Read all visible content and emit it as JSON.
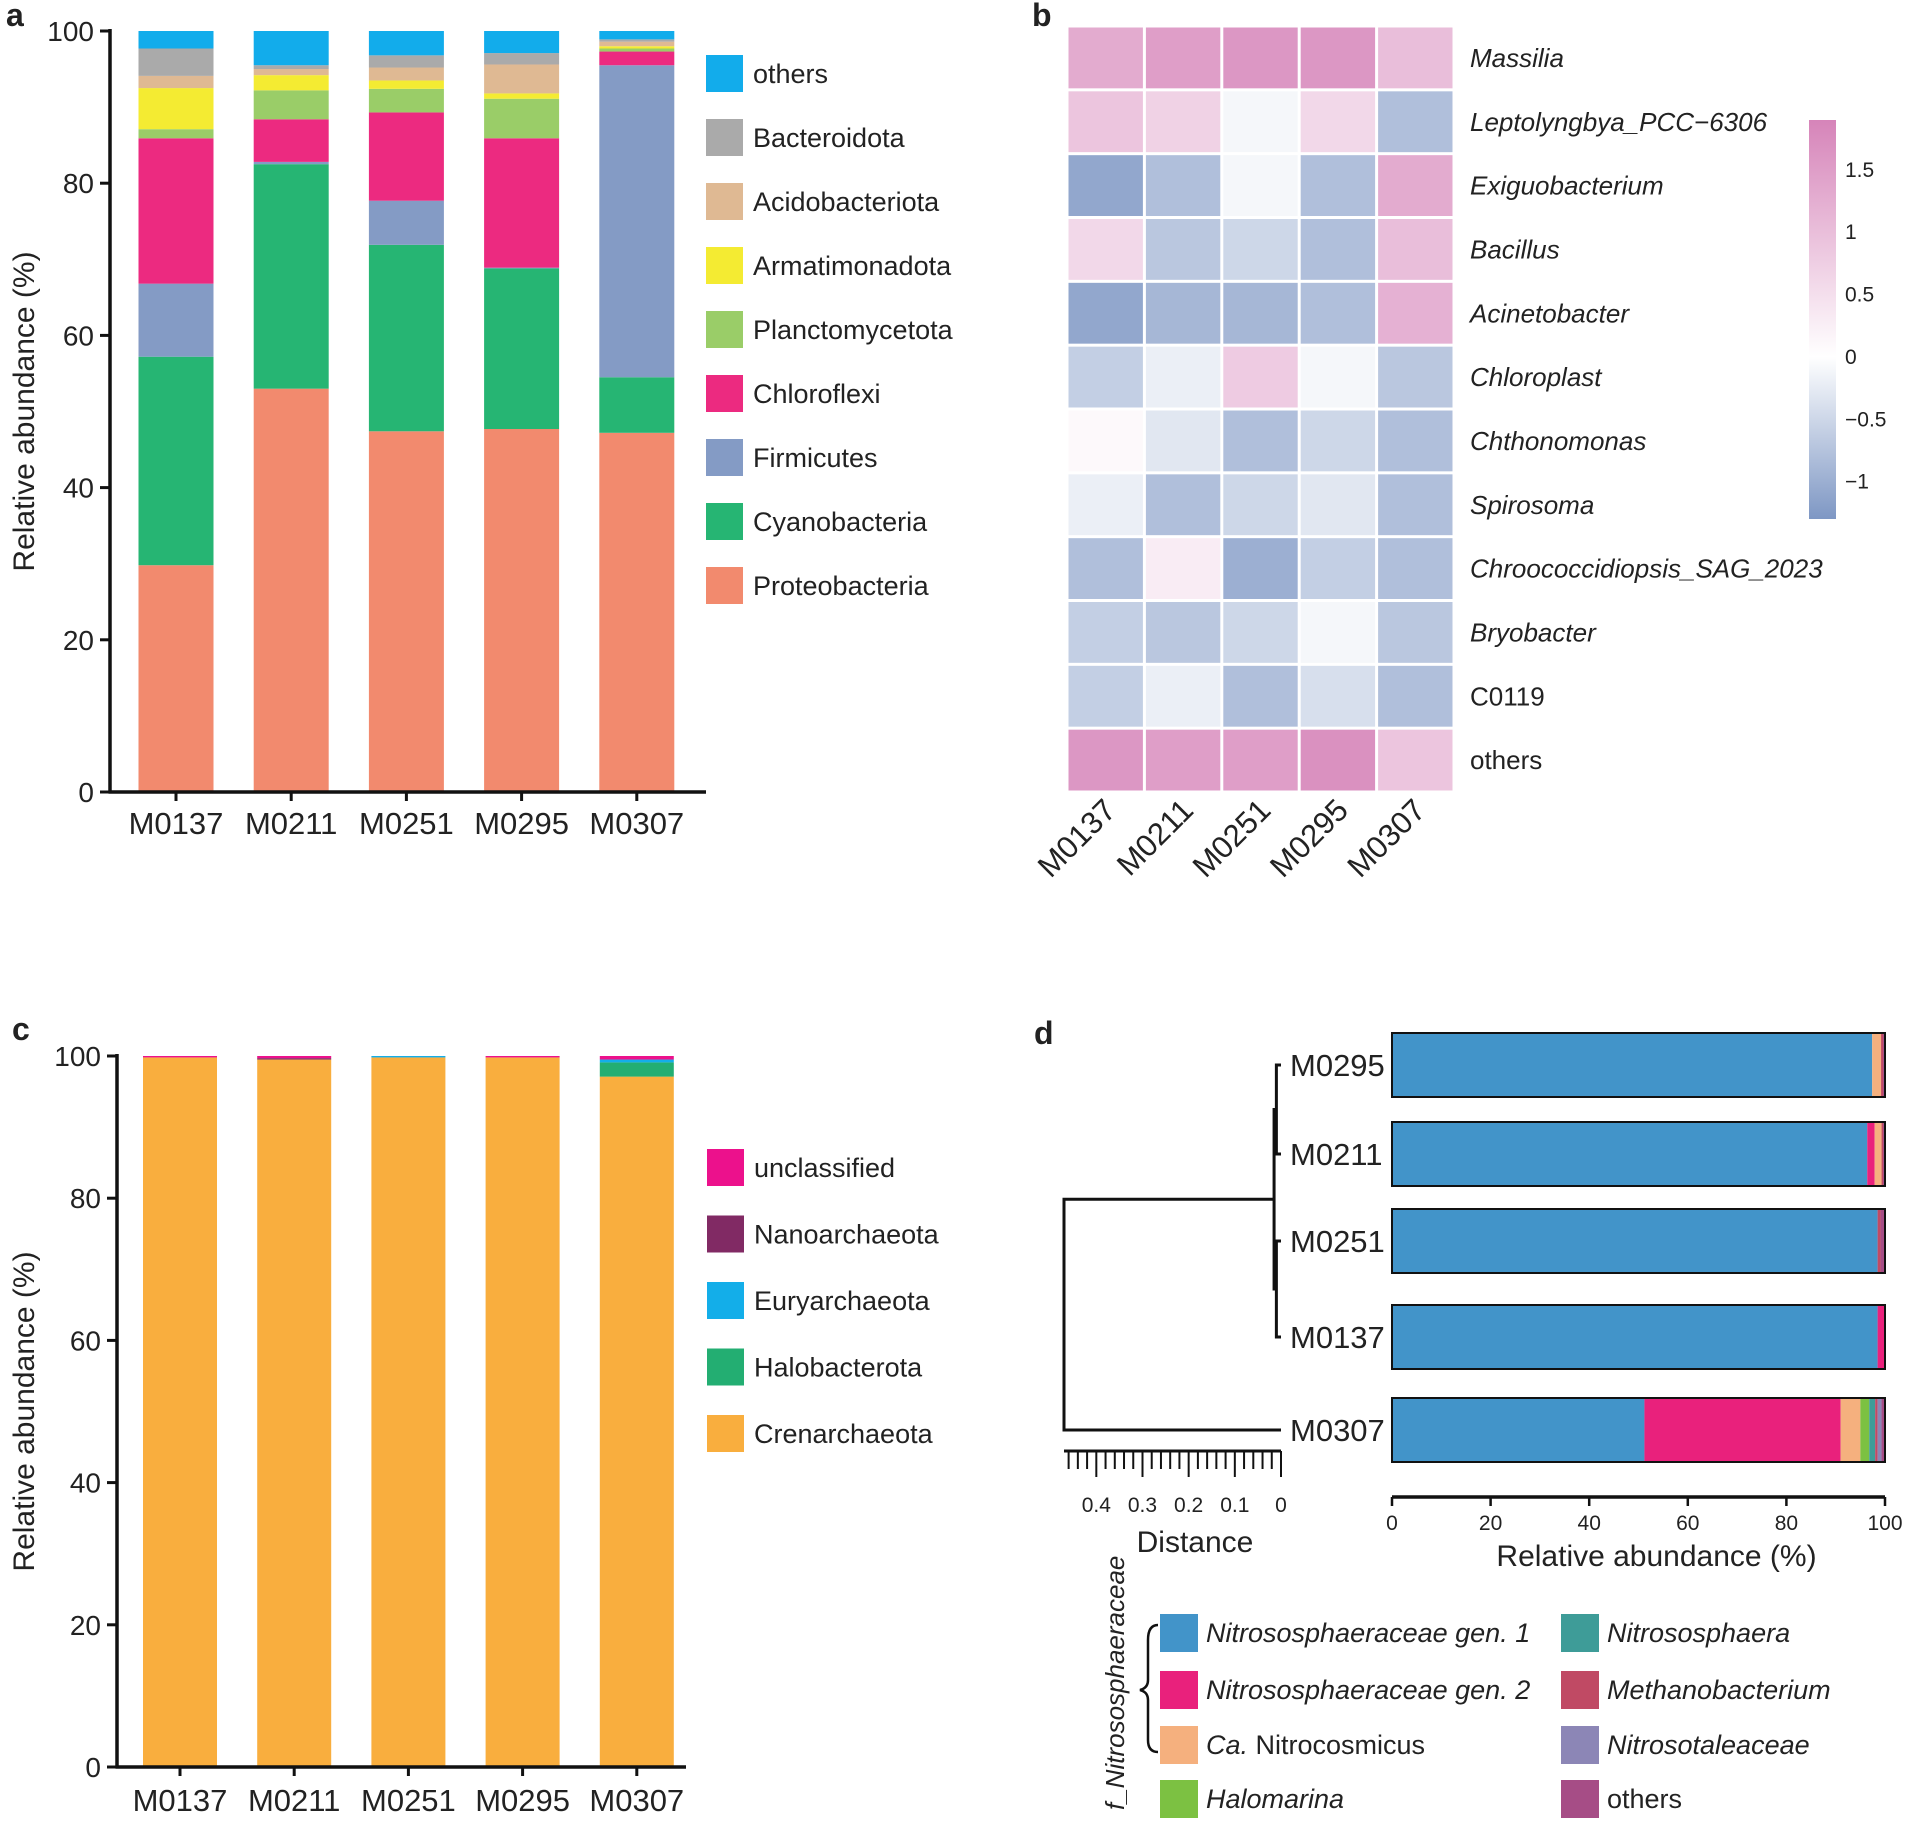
{
  "panels": {
    "a": {
      "label": "a",
      "chart_data": {
        "type": "bar",
        "stacked": true,
        "categories": [
          "M0137",
          "M0211",
          "M0251",
          "M0295",
          "M0307"
        ],
        "ylabel": "Relative abundance (%)",
        "ylim": [
          0,
          100
        ],
        "yticks": [
          0,
          20,
          40,
          60,
          80,
          100
        ],
        "legend_position": "right",
        "series": [
          {
            "name": "Proteobacteria",
            "color": "#F28A6E",
            "values": [
              29.8,
              53.0,
              47.4,
              47.7,
              47.2
            ]
          },
          {
            "name": "Cyanobacteria",
            "color": "#26B573",
            "values": [
              27.4,
              29.5,
              24.5,
              21.1,
              7.3
            ]
          },
          {
            "name": "Firmicutes",
            "color": "#849BC5",
            "values": [
              9.6,
              0.3,
              5.8,
              0.1,
              41.0
            ]
          },
          {
            "name": "Chloroflexi",
            "color": "#EC2A80",
            "values": [
              19.1,
              5.6,
              11.6,
              17.0,
              1.8
            ]
          },
          {
            "name": "Planctomycetota",
            "color": "#9ACD68",
            "values": [
              1.2,
              3.8,
              3.1,
              5.2,
              0.4
            ]
          },
          {
            "name": "Armatimonadota",
            "color": "#F4EB32",
            "values": [
              5.4,
              2.0,
              1.1,
              0.7,
              0.3
            ]
          },
          {
            "name": "Acidobacteriota",
            "color": "#DFB993",
            "values": [
              1.6,
              0.8,
              1.7,
              3.8,
              0.6
            ]
          },
          {
            "name": "Bacteroidota",
            "color": "#AAAAAA",
            "values": [
              3.6,
              0.5,
              1.6,
              1.5,
              0.3
            ]
          },
          {
            "name": "others",
            "color": "#12ACEB",
            "values": [
              2.3,
              4.5,
              3.2,
              2.9,
              1.1
            ]
          }
        ]
      }
    },
    "b": {
      "label": "b",
      "chart_data": {
        "type": "heatmap",
        "columns": [
          "M0137",
          "M0211",
          "M0251",
          "M0295",
          "M0307"
        ],
        "rows": [
          "Massilia",
          "Leptolyngbya_PCC−6306",
          "Exiguobacterium",
          "Bacillus",
          "Acinetobacter",
          "Chloroplast",
          "Chthonomonas",
          "Spirosoma",
          "Chroococcidiopsis_SAG_2023",
          "Bryobacter",
          "C0119",
          "others"
        ],
        "row_italic": [
          true,
          true,
          true,
          true,
          true,
          true,
          true,
          true,
          true,
          true,
          false,
          false
        ],
        "values": [
          [
            1.3,
            1.5,
            1.6,
            1.6,
            1.0
          ],
          [
            0.9,
            0.7,
            -0.1,
            0.6,
            -0.8
          ],
          [
            -1.1,
            -0.8,
            -0.1,
            -0.8,
            1.3
          ],
          [
            0.6,
            -0.7,
            -0.5,
            -0.8,
            1.0
          ],
          [
            -1.1,
            -0.9,
            -0.9,
            -0.8,
            1.2
          ],
          [
            -0.6,
            -0.2,
            0.8,
            -0.1,
            -0.7
          ],
          [
            0.1,
            -0.3,
            -0.8,
            -0.5,
            -0.8
          ],
          [
            -0.2,
            -0.8,
            -0.5,
            -0.3,
            -0.8
          ],
          [
            -0.8,
            0.3,
            -1.0,
            -0.6,
            -0.8
          ],
          [
            -0.6,
            -0.7,
            -0.5,
            -0.1,
            -0.7
          ],
          [
            -0.6,
            -0.2,
            -0.8,
            -0.4,
            -0.8
          ],
          [
            1.6,
            1.5,
            1.5,
            1.7,
            0.9
          ]
        ],
        "colorbar": {
          "min": -1.3,
          "max": 1.9,
          "ticks": [
            1.5,
            1,
            0.5,
            0,
            -0.5,
            -1
          ],
          "tick_labels": [
            "1.5",
            "1",
            "0.5",
            "0",
            "−0.5",
            "−1"
          ],
          "low_color": "#7E97C4",
          "mid_color": "#FFFFFF",
          "high_color": "#D684B9"
        }
      }
    },
    "c": {
      "label": "c",
      "chart_data": {
        "type": "bar",
        "stacked": true,
        "categories": [
          "M0137",
          "M0211",
          "M0251",
          "M0295",
          "M0307"
        ],
        "ylabel": "Relative abundance (%)",
        "ylim": [
          0,
          100
        ],
        "yticks": [
          0,
          20,
          40,
          60,
          80,
          100
        ],
        "legend_position": "right",
        "series": [
          {
            "name": "Crenarchaeota",
            "color": "#F9AE3E",
            "values": [
              99.8,
              99.5,
              99.8,
              99.8,
              97.1
            ]
          },
          {
            "name": "Halobacterota",
            "color": "#23AE72",
            "values": [
              0,
              0,
              0,
              0,
              2.0
            ]
          },
          {
            "name": "Euryarchaeota",
            "color": "#13AEE9",
            "values": [
              0,
              0,
              0.2,
              0,
              0.4
            ]
          },
          {
            "name": "Nanoarchaeota",
            "color": "#812A64",
            "values": [
              0,
              0.2,
              0,
              0,
              0
            ]
          },
          {
            "name": "unclassified",
            "color": "#EC118C",
            "values": [
              0.2,
              0.3,
              0,
              0.2,
              0.5
            ]
          }
        ]
      }
    },
    "d": {
      "label": "d",
      "chart_data": {
        "type": "bar",
        "stacked": true,
        "orientation": "horizontal",
        "categories": [
          "M0295",
          "M0211",
          "M0251",
          "M0137",
          "M0307"
        ],
        "xlabel": "Relative abundance (%)",
        "xlim": [
          0,
          100
        ],
        "xticks": [
          0,
          20,
          40,
          60,
          80,
          100
        ],
        "series": [
          {
            "name": "Nitrososphaeraceae gen. 1",
            "color": "#4294C9",
            "values": [
              97.4,
              96.4,
              98.5,
              98.5,
              51.2
            ]
          },
          {
            "name": "Nitrososphaeraceae gen. 2",
            "color": "#E9217C",
            "values": [
              0,
              1.5,
              0,
              1.5,
              39.8
            ]
          },
          {
            "name": "Ca. Nitrocosmicus",
            "color": "#F5B07E",
            "values": [
              1.8,
              1.4,
              0,
              0,
              4.0
            ]
          },
          {
            "name": "Halomarina",
            "color": "#7CC142",
            "values": [
              0,
              0,
              0,
              0,
              1.8
            ]
          },
          {
            "name": "Nitrososphaera",
            "color": "#3E9C98",
            "values": [
              0,
              0,
              0,
              0,
              1.2
            ]
          },
          {
            "name": "Methanobacterium",
            "color": "#C04A64",
            "values": [
              0.4,
              0.3,
              0.6,
              0,
              0.5
            ]
          },
          {
            "name": "Nitrosotaleaceae",
            "color": "#8C86B6",
            "values": [
              0,
              0,
              0,
              0,
              0.8
            ]
          },
          {
            "name": "others",
            "color": "#A64D86",
            "values": [
              0.4,
              0.4,
              0.9,
              0,
              0.7
            ]
          }
        ],
        "legend_items": [
          {
            "parts": [
              {
                "text": "Nitrososphaeraceae gen. 1",
                "italic": true
              }
            ],
            "color": "#4294C9"
          },
          {
            "parts": [
              {
                "text": "Nitrososphaeraceae gen. 2",
                "italic": true
              }
            ],
            "color": "#E9217C"
          },
          {
            "parts": [
              {
                "text": "Ca.",
                "italic": true
              },
              {
                "text": " Nitrocosmicus",
                "italic": false
              }
            ],
            "color": "#F5B07E"
          },
          {
            "parts": [
              {
                "text": "Halomarina",
                "italic": true
              }
            ],
            "color": "#7CC142"
          },
          {
            "parts": [
              {
                "text": "Nitrososphaera",
                "italic": true
              }
            ],
            "color": "#3E9C98"
          },
          {
            "parts": [
              {
                "text": "Methanobacterium",
                "italic": true
              }
            ],
            "color": "#C04A64"
          },
          {
            "parts": [
              {
                "text": "Nitrosotaleaceae",
                "italic": true
              }
            ],
            "color": "#8C86B6"
          },
          {
            "parts": [
              {
                "text": "others",
                "italic": false
              }
            ],
            "color": "#A64D86"
          }
        ],
        "family_bracket_label": "f_Nitrososphaeraceae",
        "dendrogram": {
          "xlabel": "Distance",
          "scale_max": 0.47,
          "tick_values": [
            0.4,
            0.3,
            0.2,
            0.1,
            0
          ],
          "tick_labels": [
            "0.4",
            "0.3",
            "0.2",
            "0.1",
            "0"
          ],
          "merges": [
            {
              "children": [
                "M0295",
                "M0211"
              ],
              "height": 0.01
            },
            {
              "children": [
                "M0251",
                "M0137"
              ],
              "height": 0.01
            },
            {
              "children": [
                "M0295+M0211",
                "M0251+M0137"
              ],
              "height": 0.015
            },
            {
              "children": [
                "cluster4",
                "M0307"
              ],
              "height": 0.47
            }
          ]
        }
      }
    }
  }
}
